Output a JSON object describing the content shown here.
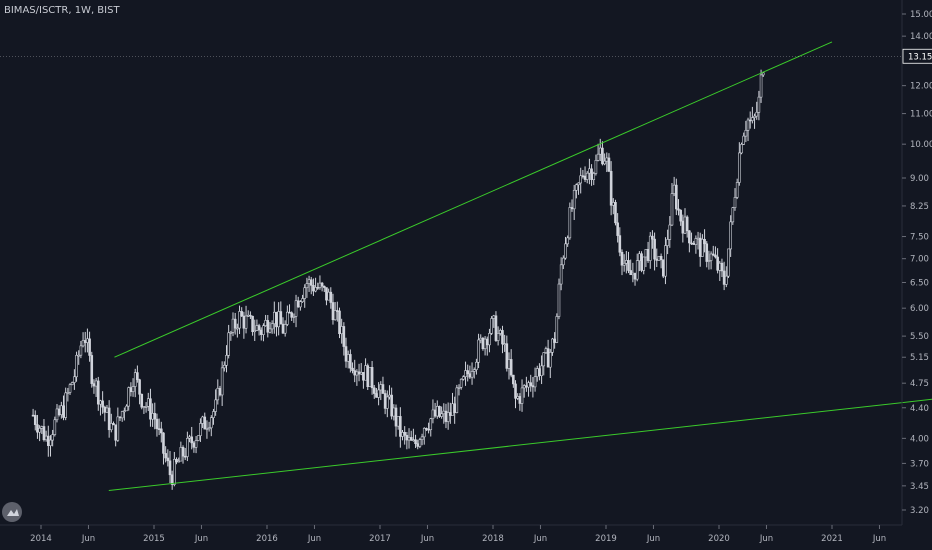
{
  "header": {
    "symbol_line": "BIMAS/ISCTR, 1W, BIST"
  },
  "colors": {
    "background": "#131722",
    "candle": "#d1d4dc",
    "trendline": "#3bcb2b",
    "axis_text": "#b2b5be"
  },
  "chart_data": {
    "type": "candlestick",
    "title": "BIMAS/ISCTR, 1W, BIST",
    "y_scale": "log",
    "ylim": [
      3.05,
      16.2
    ],
    "xlim": [
      2013.93,
      2021.5
    ],
    "y_ticks": [
      "15.00",
      "14.00",
      "13.15",
      "12.00",
      "11.00",
      "10.00",
      "9.00",
      "8.25",
      "7.50",
      "7.00",
      "6.50",
      "6.00",
      "5.50",
      "5.15",
      "4.75",
      "4.40",
      "4.00",
      "3.70",
      "3.45",
      "3.20"
    ],
    "x_ticks": [
      {
        "label": "2014",
        "x": 2014.0
      },
      {
        "label": "Jun",
        "x": 2014.42
      },
      {
        "label": "2015",
        "x": 2015.0
      },
      {
        "label": "Jun",
        "x": 2015.42
      },
      {
        "label": "2016",
        "x": 2016.0
      },
      {
        "label": "Jun",
        "x": 2016.42
      },
      {
        "label": "2017",
        "x": 2017.0
      },
      {
        "label": "Jun",
        "x": 2017.42
      },
      {
        "label": "2018",
        "x": 2018.0
      },
      {
        "label": "Jun",
        "x": 2018.42
      },
      {
        "label": "2019",
        "x": 2019.0
      },
      {
        "label": "Jun",
        "x": 2019.42
      },
      {
        "label": "2020",
        "x": 2020.0
      },
      {
        "label": "Jun",
        "x": 2020.42
      },
      {
        "label": "2021",
        "x": 2021.0
      },
      {
        "label": "Jun",
        "x": 2021.42
      }
    ],
    "last_price": "13.15",
    "close_path": [
      [
        2013.93,
        4.3
      ],
      [
        2014.05,
        4.0
      ],
      [
        2014.2,
        4.4
      ],
      [
        2014.3,
        4.9
      ],
      [
        2014.38,
        5.6
      ],
      [
        2014.45,
        4.9
      ],
      [
        2014.55,
        4.4
      ],
      [
        2014.65,
        4.05
      ],
      [
        2014.75,
        4.5
      ],
      [
        2014.82,
        4.9
      ],
      [
        2014.9,
        4.5
      ],
      [
        2015.0,
        4.3
      ],
      [
        2015.08,
        3.85
      ],
      [
        2015.15,
        3.55
      ],
      [
        2015.25,
        3.8
      ],
      [
        2015.35,
        4.0
      ],
      [
        2015.45,
        4.2
      ],
      [
        2015.55,
        4.4
      ],
      [
        2015.65,
        5.4
      ],
      [
        2015.75,
        5.85
      ],
      [
        2015.85,
        5.7
      ],
      [
        2015.95,
        5.6
      ],
      [
        2016.05,
        5.9
      ],
      [
        2016.15,
        5.6
      ],
      [
        2016.25,
        6.1
      ],
      [
        2016.35,
        6.5
      ],
      [
        2016.45,
        6.4
      ],
      [
        2016.55,
        6.2
      ],
      [
        2016.65,
        5.6
      ],
      [
        2016.7,
        5.2
      ],
      [
        2016.8,
        5.0
      ],
      [
        2016.9,
        4.85
      ],
      [
        2017.0,
        4.6
      ],
      [
        2017.1,
        4.4
      ],
      [
        2017.2,
        4.0
      ],
      [
        2017.3,
        3.9
      ],
      [
        2017.4,
        4.2
      ],
      [
        2017.5,
        4.3
      ],
      [
        2017.6,
        4.25
      ],
      [
        2017.7,
        4.6
      ],
      [
        2017.8,
        5.0
      ],
      [
        2017.9,
        5.4
      ],
      [
        2018.0,
        5.7
      ],
      [
        2018.1,
        5.3
      ],
      [
        2018.15,
        4.9
      ],
      [
        2018.2,
        4.5
      ],
      [
        2018.3,
        4.7
      ],
      [
        2018.4,
        4.95
      ],
      [
        2018.5,
        5.2
      ],
      [
        2018.55,
        5.5
      ],
      [
        2018.6,
        6.8
      ],
      [
        2018.65,
        7.6
      ],
      [
        2018.7,
        8.2
      ],
      [
        2018.8,
        9.2
      ],
      [
        2018.9,
        9.3
      ],
      [
        2018.95,
        9.8
      ],
      [
        2019.0,
        9.6
      ],
      [
        2019.05,
        8.4
      ],
      [
        2019.1,
        7.6
      ],
      [
        2019.15,
        7.0
      ],
      [
        2019.2,
        6.6
      ],
      [
        2019.3,
        6.9
      ],
      [
        2019.4,
        7.3
      ],
      [
        2019.5,
        6.7
      ],
      [
        2019.55,
        7.6
      ],
      [
        2019.6,
        8.7
      ],
      [
        2019.65,
        8.0
      ],
      [
        2019.75,
        7.5
      ],
      [
        2019.85,
        7.2
      ],
      [
        2019.95,
        7.0
      ],
      [
        2020.05,
        6.5
      ],
      [
        2020.1,
        7.6
      ],
      [
        2020.15,
        8.9
      ],
      [
        2020.2,
        10.3
      ],
      [
        2020.25,
        10.8
      ],
      [
        2020.3,
        10.6
      ],
      [
        2020.35,
        11.3
      ],
      [
        2020.38,
        12.5
      ],
      [
        2020.4,
        13.15
      ]
    ],
    "trendlines": [
      {
        "name": "upper",
        "x": [
          2014.65,
          2021.0
        ],
        "y": [
          5.15,
          13.75
        ]
      },
      {
        "name": "lower",
        "x": [
          2014.6,
          2021.9
        ],
        "y": [
          3.4,
          4.52
        ]
      }
    ]
  }
}
